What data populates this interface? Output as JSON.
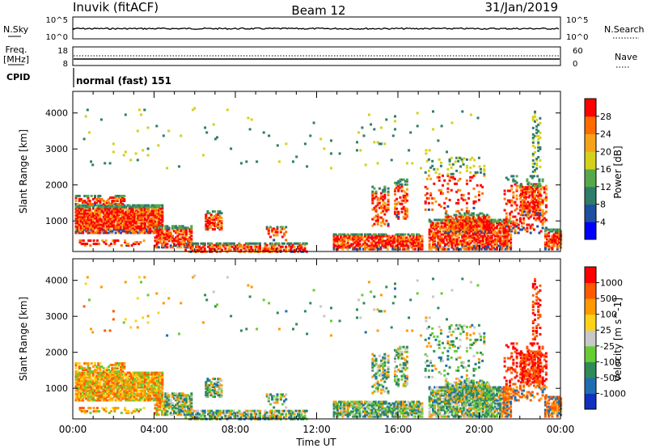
{
  "header": {
    "station": "Inuvik (fitACF)",
    "beam": "Beam 12",
    "date": "31/Jan/2019"
  },
  "strip_panels": {
    "nsky_label": "N.Sky",
    "nsky_ticks": [
      "10^5",
      "10^0"
    ],
    "nsearch_label": "N.Search",
    "nsearch_ticks": [
      "10^5",
      "10^0"
    ],
    "freq_label_1": "Freq.",
    "freq_label_2": "[MHz]",
    "freq_ticks": [
      "18",
      "8"
    ],
    "nave_label": "Nave",
    "nave_ticks": [
      "60",
      "0"
    ],
    "cpid_label": "CPID",
    "cpid_value": "normal (fast) 151"
  },
  "chart_data": [
    {
      "type": "heatmap",
      "name": "power-panel",
      "ylabel": "Slant Range [km]",
      "yticks": [
        "1000",
        "2000",
        "3000",
        "4000"
      ],
      "ylim": [
        150,
        4600
      ],
      "colorbar": {
        "label": "Power [dB]",
        "ticks": [
          "28",
          "24",
          "20",
          "16",
          "12",
          "8",
          "4"
        ],
        "colors": [
          "#0000ff",
          "#1f4fa0",
          "#2e7d6a",
          "#56a84a",
          "#d4d11c",
          "#f5a31a",
          "#ff6b00",
          "#ff0000"
        ]
      }
    },
    {
      "type": "heatmap",
      "name": "velocity-panel",
      "ylabel": "Slant Range [km]",
      "yticks": [
        "1000",
        "2000",
        "3000",
        "4000"
      ],
      "ylim": [
        150,
        4600
      ],
      "colorbar": {
        "label": "Velocity [m s^-1]",
        "ticks": [
          "1000",
          "500",
          "100",
          "25",
          "-25",
          "-100",
          "-500",
          "-1000"
        ],
        "colors": [
          "#1030c0",
          "#1f6fb0",
          "#2e8b57",
          "#66cc33",
          "#c8c8c8",
          "#ffd21a",
          "#ff9a00",
          "#ff5a00",
          "#ff0000"
        ]
      }
    }
  ],
  "x_axis": {
    "label": "Time UT",
    "ticks": [
      "00:00",
      "04:00",
      "08:00",
      "12:00",
      "16:00",
      "20:00",
      "00:00"
    ]
  }
}
